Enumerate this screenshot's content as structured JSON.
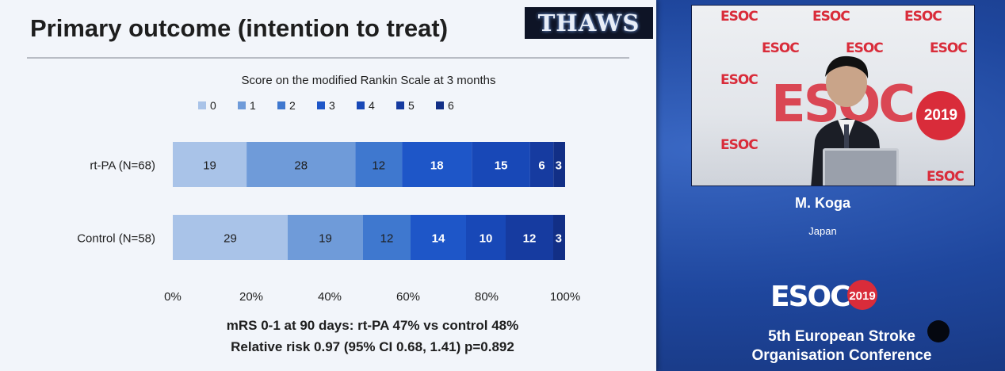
{
  "slide": {
    "title": "Primary outcome (intention to treat)",
    "logo_text": "THAWS",
    "stat_line_1": "mRS 0-1 at 90 days: rt-PA 47% vs control 48%",
    "stat_line_2": "Relative risk 0.97 (95% CI 0.68, 1.41) p=0.892"
  },
  "chart_data": {
    "type": "bar",
    "orientation": "horizontal-stacked-100",
    "title": "Score on the modified Rankin Scale at 3 months",
    "categories": [
      "rt-PA (N=68)",
      "Control (N=58)"
    ],
    "series": [
      {
        "name": "0",
        "color": "#a9c3e8",
        "values": [
          19,
          29
        ]
      },
      {
        "name": "1",
        "color": "#6f9bd9",
        "values": [
          28,
          19
        ]
      },
      {
        "name": "2",
        "color": "#3f78cf",
        "values": [
          12,
          12
        ]
      },
      {
        "name": "3",
        "color": "#1e56c8",
        "values": [
          18,
          14
        ]
      },
      {
        "name": "4",
        "color": "#1848b7",
        "values": [
          15,
          10
        ]
      },
      {
        "name": "5",
        "color": "#163ba0",
        "values": [
          6,
          12
        ]
      },
      {
        "name": "6",
        "color": "#122f86",
        "values": [
          3,
          3
        ]
      }
    ],
    "x_ticks": [
      "0%",
      "20%",
      "40%",
      "60%",
      "80%",
      "100%"
    ],
    "xlim": [
      0,
      100
    ],
    "legend_position": "top"
  },
  "video": {
    "speaker_name": "M. Koga",
    "speaker_country": "Japan",
    "brand": "ESOC",
    "year": "2019"
  },
  "conference": {
    "brand": "ESOC",
    "year": "2019",
    "line1": "5th European Stroke",
    "line2": "Organisation Conference"
  },
  "colors": {
    "background": "#1c3f8f",
    "accent_red": "#d92c3a"
  }
}
